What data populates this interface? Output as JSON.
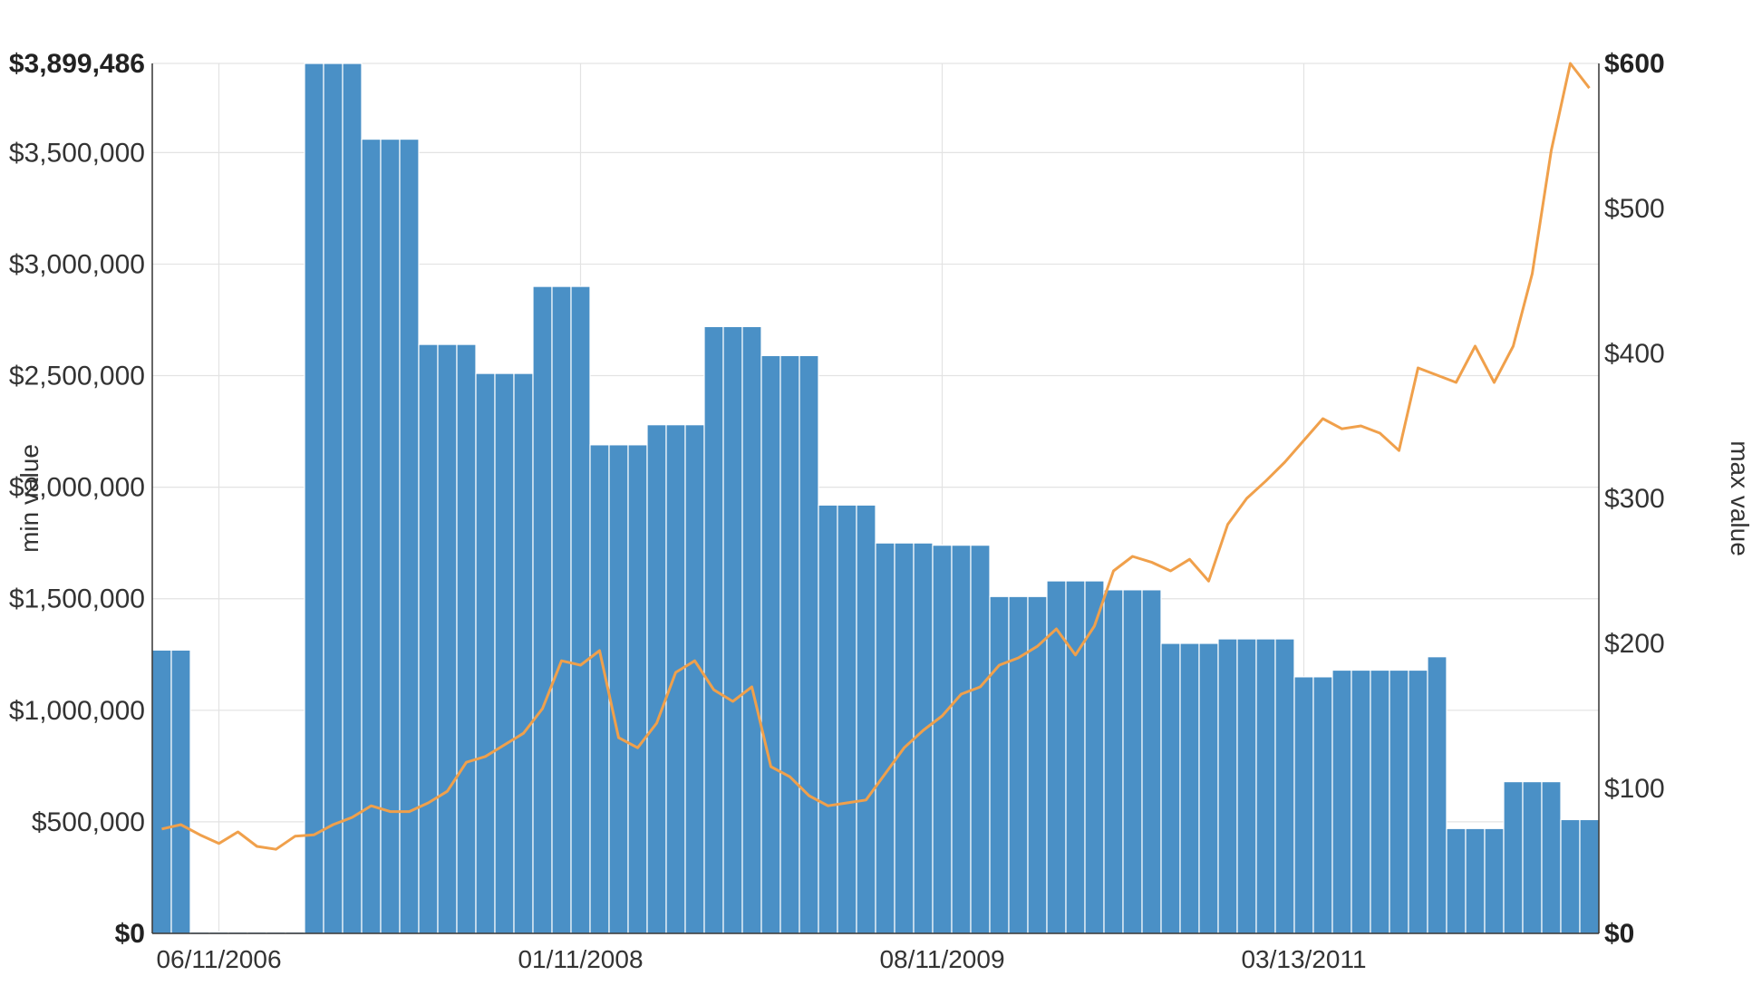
{
  "chart_data": {
    "type": "bar",
    "title": "",
    "colors": {
      "bars": "#4a90c6",
      "line": "#f0a04b",
      "grid": "#e3e3e3",
      "axis": "#333333"
    },
    "grid": true,
    "legend": "none",
    "y_left": {
      "label": "min value",
      "range": [
        0,
        3899486
      ],
      "tick_values": [
        0,
        500000,
        1000000,
        1500000,
        2000000,
        2500000,
        3000000,
        3500000,
        3899486
      ],
      "tick_labels": [
        "$0",
        "$500,000",
        "$1,000,000",
        "$1,500,000",
        "$2,000,000",
        "$2,500,000",
        "$3,000,000",
        "$3,500,000",
        "$3,899,486"
      ]
    },
    "y_right": {
      "label": "max value",
      "range": [
        0,
        600
      ],
      "tick_values": [
        0,
        100,
        200,
        300,
        400,
        500,
        600
      ],
      "tick_labels": [
        "$0",
        "$100",
        "$200",
        "$300",
        "$400",
        "$500",
        "$600"
      ]
    },
    "x_axis": {
      "ticks": [
        {
          "label": "06/11/2006",
          "month_index": 3.5
        },
        {
          "label": "01/11/2008",
          "month_index": 22.5
        },
        {
          "label": "08/11/2009",
          "month_index": 41.5
        },
        {
          "label": "03/13/2011",
          "month_index": 60.5
        }
      ]
    },
    "series": [
      {
        "type": "bar",
        "axis": "left",
        "values": [
          1270000,
          1270000,
          0,
          0,
          0,
          0,
          0,
          0,
          3899486,
          3899486,
          3899486,
          3560000,
          3560000,
          3560000,
          2640000,
          2640000,
          2640000,
          2510000,
          2510000,
          2510000,
          2900000,
          2900000,
          2900000,
          2190000,
          2190000,
          2190000,
          2280000,
          2280000,
          2280000,
          2720000,
          2720000,
          2720000,
          2590000,
          2590000,
          2590000,
          1920000,
          1920000,
          1920000,
          1750000,
          1750000,
          1750000,
          1740000,
          1740000,
          1740000,
          1510000,
          1510000,
          1510000,
          1580000,
          1580000,
          1580000,
          1540000,
          1540000,
          1540000,
          1300000,
          1300000,
          1300000,
          1320000,
          1320000,
          1320000,
          1320000,
          1150000,
          1150000,
          1180000,
          1180000,
          1180000,
          1180000,
          1180000,
          1240000,
          470000,
          470000,
          470000,
          680000,
          680000,
          680000,
          510000,
          510000
        ]
      },
      {
        "type": "line",
        "axis": "right",
        "values": [
          72,
          75,
          68,
          62,
          70,
          60,
          58,
          67,
          68,
          75,
          80,
          88,
          84,
          84,
          90,
          98,
          118,
          122,
          130,
          138,
          155,
          188,
          185,
          195,
          135,
          128,
          145,
          180,
          188,
          168,
          160,
          170,
          115,
          108,
          95,
          88,
          90,
          92,
          110,
          128,
          140,
          150,
          165,
          170,
          185,
          190,
          198,
          210,
          192,
          212,
          250,
          260,
          256,
          250,
          258,
          243,
          282,
          300,
          312,
          325,
          340,
          355,
          348,
          350,
          345,
          333,
          390,
          385,
          380,
          405,
          380,
          405,
          455,
          540,
          600,
          583
        ]
      }
    ]
  }
}
